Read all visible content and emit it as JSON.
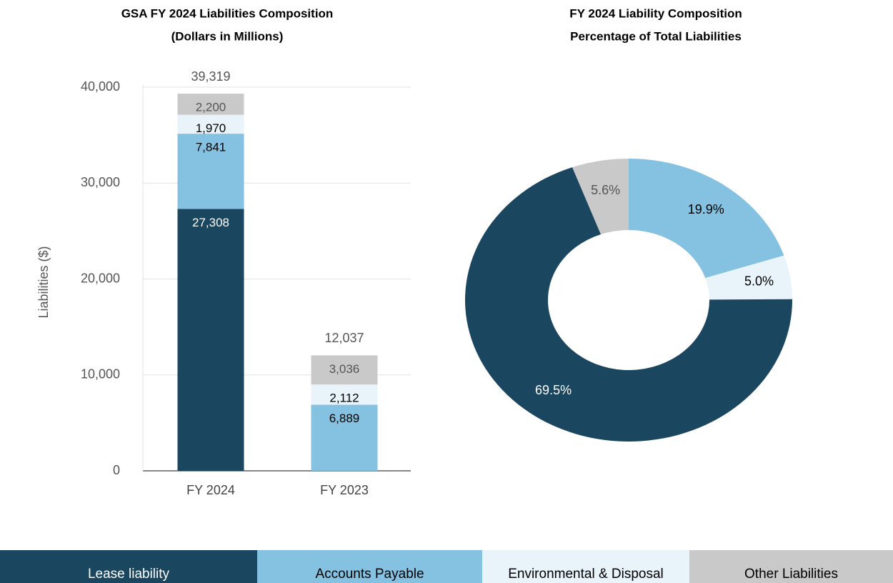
{
  "chart_data": [
    {
      "type": "stacked-bar",
      "title": "GSA FY 2024 Liabilities Composition",
      "subtitle": "(Dollars in Millions)",
      "y_label": "Liabilities  ($)",
      "categories": [
        "FY 2024",
        "FY 2023"
      ],
      "series": [
        {
          "name": "Lease liability",
          "color": "#1a4660",
          "values": [
            27308,
            null
          ],
          "value_labels": [
            "27,308",
            null
          ]
        },
        {
          "name": "Accounts Payable",
          "color": "#85c1e0",
          "values": [
            7841,
            6889
          ],
          "value_labels": [
            "7,841",
            "6,889"
          ]
        },
        {
          "name": "Environmental & Disposal",
          "color": "#e8f4fa",
          "values": [
            1970,
            2112
          ],
          "value_labels": [
            "1,970",
            "2,112"
          ]
        },
        {
          "name": "Other Liabilities",
          "color": "#c9c9c9",
          "values": [
            2200,
            3036
          ],
          "value_labels": [
            "2,200",
            "3,036"
          ]
        }
      ],
      "totals": {
        "values": [
          39319,
          12037
        ],
        "value_labels": [
          "39,319",
          "12,037"
        ]
      },
      "ylim": [
        0,
        40000
      ],
      "yticks": [
        0,
        {
          "value": 10000,
          "label": "10,000"
        },
        {
          "value": 20000,
          "label": "20,000"
        },
        {
          "value": 30000,
          "label": "30,000"
        },
        {
          "value": 40000,
          "label": "40,000"
        }
      ],
      "grid": true
    },
    {
      "type": "donut",
      "title": "FY 2024 Liability Composition",
      "subtitle": "Percentage of Total Liabilities",
      "categories": [
        "Accounts Payable",
        "Environmental & Disposal",
        "Lease liability",
        "Other Liabilities"
      ],
      "values": [
        19.9,
        5.0,
        69.5,
        5.6
      ],
      "value_labels": [
        "19.9%",
        "5.0%",
        "69.5%",
        "5.6%"
      ],
      "colors": [
        "#85c1e0",
        "#e8f4fa",
        "#1a4660",
        "#c9c9c9"
      ]
    }
  ]
}
